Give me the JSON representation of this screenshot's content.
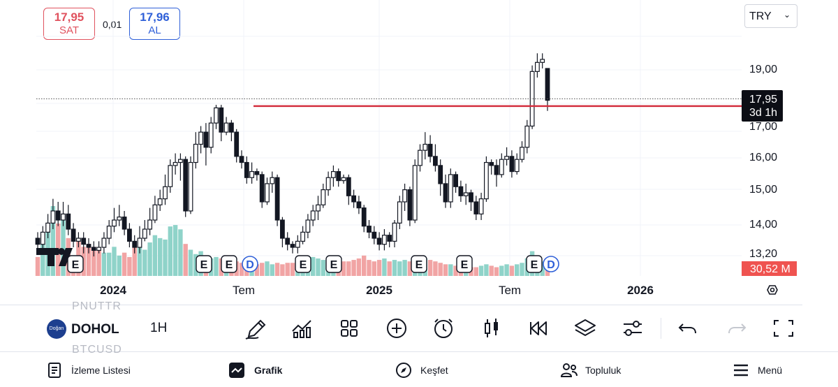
{
  "quote": {
    "sell_price": "17,95",
    "sell_label": "SAT",
    "spread": "0,01",
    "buy_price": "17,96",
    "buy_label": "AL"
  },
  "currency": "TRY",
  "price_axis": {
    "labels": [
      "19,00",
      "16,00",
      "15,00",
      "14,00",
      "13,20"
    ],
    "last_price": "17,95",
    "countdown": "3d 1h",
    "volume_label": "30,52 M",
    "partial_label": "17,00"
  },
  "time_axis": [
    "2024",
    "Tem",
    "2025",
    "Tem",
    "2026"
  ],
  "events": [
    "E",
    "E",
    "E",
    "D",
    "E",
    "E",
    "E",
    "E",
    "E",
    "D"
  ],
  "symbol": {
    "name": "DOHOL",
    "logo_text": "Doğan",
    "interval": "1H",
    "ticker_above": "PNUTTR",
    "ticker_below": "BTCUSD"
  },
  "toolbar": [
    "pencil-icon",
    "indicators-icon",
    "layout-icon",
    "add-icon",
    "alarm-icon",
    "candle-style-icon",
    "replay-icon",
    "layers-icon",
    "settings-sliders-icon",
    "undo-icon",
    "redo-icon",
    "fullscreen-icon"
  ],
  "nav": {
    "watchlist": "İzleme Listesi",
    "chart": "Grafik",
    "explore": "Keşfet",
    "community": "Topluluk",
    "menu": "Menü"
  },
  "colors": {
    "up_volume": "#8fd3c9",
    "down_volume": "#f1a4a4",
    "resistance": "#d32f3f",
    "buy": "#2e5fd8",
    "sell": "#e0525e"
  },
  "chart_data": {
    "type": "candlestick",
    "interval": "1W",
    "ylim": [
      12.8,
      19.7
    ],
    "resistance": 17.76,
    "candles": [
      [
        13.4,
        13.2,
        13.6,
        12.9
      ],
      [
        13.2,
        13.6,
        13.8,
        13.0
      ],
      [
        13.6,
        13.9,
        14.2,
        13.4
      ],
      [
        13.9,
        14.3,
        14.7,
        13.7
      ],
      [
        14.3,
        14.0,
        14.6,
        13.8
      ],
      [
        14.0,
        14.2,
        14.6,
        13.8
      ],
      [
        14.2,
        13.7,
        14.5,
        13.5
      ],
      [
        13.7,
        13.3,
        13.9,
        13.1
      ],
      [
        13.3,
        13.4,
        13.6,
        13.1
      ],
      [
        13.4,
        13.2,
        13.6,
        12.9
      ],
      [
        13.2,
        13.1,
        13.4,
        12.9
      ],
      [
        13.1,
        13.0,
        13.3,
        12.8
      ],
      [
        13.0,
        13.1,
        13.3,
        12.9
      ],
      [
        13.1,
        13.4,
        13.6,
        12.9
      ],
      [
        13.4,
        13.8,
        14.0,
        13.2
      ],
      [
        13.8,
        14.0,
        14.4,
        13.6
      ],
      [
        14.0,
        14.1,
        14.5,
        13.8
      ],
      [
        14.1,
        13.7,
        14.3,
        13.5
      ],
      [
        13.7,
        13.3,
        13.9,
        13.1
      ],
      [
        13.3,
        13.1,
        13.5,
        12.9
      ],
      [
        13.1,
        13.4,
        13.8,
        12.9
      ],
      [
        13.4,
        13.7,
        14.0,
        13.3
      ],
      [
        13.7,
        14.0,
        14.4,
        13.5
      ],
      [
        14.0,
        14.5,
        14.8,
        13.9
      ],
      [
        14.5,
        14.7,
        15.0,
        14.3
      ],
      [
        14.7,
        15.1,
        15.5,
        14.5
      ],
      [
        15.1,
        15.8,
        16.0,
        14.9
      ],
      [
        15.8,
        15.9,
        16.2,
        15.5
      ],
      [
        15.9,
        16.0,
        16.2,
        15.3
      ],
      [
        16.0,
        14.3,
        16.1,
        14.1
      ],
      [
        14.3,
        15.9,
        16.1,
        14.2
      ],
      [
        15.9,
        16.5,
        16.9,
        15.7
      ],
      [
        16.5,
        16.9,
        17.1,
        16.2
      ],
      [
        16.9,
        16.4,
        17.2,
        15.8
      ],
      [
        16.4,
        17.2,
        17.4,
        16.2
      ],
      [
        17.2,
        17.7,
        17.8,
        17.0
      ],
      [
        17.7,
        16.9,
        17.8,
        16.6
      ],
      [
        16.9,
        17.2,
        17.4,
        16.8
      ],
      [
        17.2,
        16.9,
        17.3,
        16.6
      ],
      [
        16.9,
        16.1,
        17.0,
        15.9
      ],
      [
        16.1,
        15.9,
        16.3,
        15.7
      ],
      [
        15.9,
        15.4,
        16.1,
        15.2
      ],
      [
        15.4,
        15.6,
        15.9,
        15.2
      ],
      [
        15.6,
        15.5,
        15.7,
        15.3
      ],
      [
        15.5,
        14.6,
        15.6,
        14.4
      ],
      [
        14.6,
        15.2,
        15.4,
        14.5
      ],
      [
        15.2,
        15.4,
        15.6,
        14.9
      ],
      [
        15.4,
        14.0,
        15.5,
        13.8
      ],
      [
        14.0,
        13.4,
        14.1,
        13.1
      ],
      [
        13.4,
        13.2,
        13.6,
        13.0
      ],
      [
        13.2,
        13.1,
        13.3,
        12.9
      ],
      [
        13.1,
        13.3,
        13.5,
        12.9
      ],
      [
        13.3,
        13.6,
        13.8,
        13.2
      ],
      [
        13.6,
        14.0,
        14.2,
        13.4
      ],
      [
        14.0,
        14.3,
        14.5,
        13.8
      ],
      [
        14.3,
        14.5,
        14.8,
        14.0
      ],
      [
        14.5,
        15.0,
        15.2,
        14.4
      ],
      [
        15.0,
        15.4,
        15.6,
        14.8
      ],
      [
        15.4,
        15.6,
        15.8,
        15.1
      ],
      [
        15.6,
        15.3,
        15.7,
        15.1
      ],
      [
        15.3,
        15.4,
        15.5,
        15.2
      ],
      [
        15.4,
        14.8,
        15.5,
        14.5
      ],
      [
        14.8,
        14.6,
        15.0,
        14.4
      ],
      [
        14.6,
        14.4,
        14.8,
        14.2
      ],
      [
        14.4,
        13.8,
        14.5,
        13.6
      ],
      [
        13.8,
        13.6,
        14.0,
        13.4
      ],
      [
        13.6,
        13.4,
        13.8,
        13.2
      ],
      [
        13.4,
        13.2,
        13.6,
        13.0
      ],
      [
        13.2,
        13.5,
        13.7,
        13.0
      ],
      [
        13.5,
        13.3,
        13.6,
        13.1
      ],
      [
        13.3,
        13.9,
        14.0,
        13.1
      ],
      [
        13.9,
        14.6,
        14.8,
        13.7
      ],
      [
        14.6,
        15.0,
        15.2,
        14.3
      ],
      [
        15.0,
        14.0,
        15.1,
        13.8
      ],
      [
        14.0,
        15.8,
        16.0,
        13.9
      ],
      [
        15.8,
        16.3,
        16.5,
        15.6
      ],
      [
        16.3,
        16.5,
        16.9,
        16.0
      ],
      [
        16.5,
        16.1,
        16.8,
        15.9
      ],
      [
        16.1,
        15.8,
        16.5,
        15.6
      ],
      [
        15.8,
        15.2,
        16.0,
        14.8
      ],
      [
        15.2,
        14.6,
        15.5,
        14.4
      ],
      [
        14.6,
        15.5,
        15.7,
        14.4
      ],
      [
        15.5,
        15.1,
        15.6,
        14.9
      ],
      [
        15.1,
        14.8,
        15.3,
        14.6
      ],
      [
        14.8,
        14.9,
        15.2,
        14.5
      ],
      [
        14.9,
        14.6,
        15.0,
        14.3
      ],
      [
        14.6,
        14.2,
        14.8,
        14.0
      ],
      [
        14.2,
        14.7,
        14.9,
        14.0
      ],
      [
        14.7,
        15.9,
        16.1,
        14.6
      ],
      [
        15.9,
        15.8,
        16.0,
        15.5
      ],
      [
        15.8,
        15.5,
        16.0,
        15.1
      ],
      [
        15.5,
        16.0,
        16.2,
        15.4
      ],
      [
        16.0,
        16.1,
        16.4,
        15.8
      ],
      [
        16.1,
        15.6,
        16.3,
        15.4
      ],
      [
        15.6,
        16.0,
        16.2,
        15.5
      ],
      [
        16.0,
        16.4,
        16.6,
        15.9
      ],
      [
        16.4,
        17.1,
        17.3,
        16.2
      ],
      [
        17.1,
        18.9,
        19.1,
        17.0
      ],
      [
        18.9,
        19.2,
        19.5,
        18.7
      ],
      [
        19.2,
        19.3,
        19.5,
        19.0
      ],
      [
        19.0,
        17.95,
        19.0,
        17.6
      ]
    ],
    "volume": [
      [
        1.3,
        "d"
      ],
      [
        2.5,
        "u"
      ],
      [
        3.2,
        "u"
      ],
      [
        4.8,
        "u"
      ],
      [
        3.6,
        "d"
      ],
      [
        4.2,
        "u"
      ],
      [
        2.6,
        "d"
      ],
      [
        1.2,
        "d"
      ],
      [
        2.4,
        "d"
      ],
      [
        2.0,
        "d"
      ],
      [
        2.2,
        "d"
      ],
      [
        2.0,
        "d"
      ],
      [
        1.8,
        "d"
      ],
      [
        1.6,
        "u"
      ],
      [
        1.6,
        "u"
      ],
      [
        2.0,
        "u"
      ],
      [
        1.4,
        "u"
      ],
      [
        1.6,
        "d"
      ],
      [
        1.3,
        "d"
      ],
      [
        2.3,
        "d"
      ],
      [
        2.0,
        "u"
      ],
      [
        1.8,
        "u"
      ],
      [
        2.3,
        "u"
      ],
      [
        2.8,
        "u"
      ],
      [
        2.6,
        "u"
      ],
      [
        2.5,
        "u"
      ],
      [
        3.4,
        "u"
      ],
      [
        3.5,
        "u"
      ],
      [
        3.2,
        "u"
      ],
      [
        2.2,
        "d"
      ],
      [
        1.8,
        "u"
      ],
      [
        1.5,
        "u"
      ],
      [
        1.7,
        "u"
      ],
      [
        1.4,
        "d"
      ],
      [
        1.2,
        "u"
      ],
      [
        1.3,
        "u"
      ],
      [
        1.2,
        "d"
      ],
      [
        1.4,
        "u"
      ],
      [
        1.3,
        "d"
      ],
      [
        1.0,
        "d"
      ],
      [
        0.9,
        "d"
      ],
      [
        0.8,
        "d"
      ],
      [
        1.0,
        "u"
      ],
      [
        0.8,
        "d"
      ],
      [
        0.9,
        "d"
      ],
      [
        1.0,
        "u"
      ],
      [
        0.8,
        "u"
      ],
      [
        0.9,
        "d"
      ],
      [
        0.8,
        "d"
      ],
      [
        0.9,
        "d"
      ],
      [
        0.9,
        "d"
      ],
      [
        1.0,
        "u"
      ],
      [
        1.0,
        "u"
      ],
      [
        1.1,
        "u"
      ],
      [
        1.3,
        "u"
      ],
      [
        1.2,
        "u"
      ],
      [
        1.1,
        "u"
      ],
      [
        1.2,
        "u"
      ],
      [
        1.3,
        "u"
      ],
      [
        1.1,
        "d"
      ],
      [
        1.0,
        "d"
      ],
      [
        1.0,
        "d"
      ],
      [
        1.1,
        "d"
      ],
      [
        1.2,
        "d"
      ],
      [
        1.4,
        "d"
      ],
      [
        1.1,
        "d"
      ],
      [
        1.0,
        "d"
      ],
      [
        1.1,
        "d"
      ],
      [
        1.2,
        "u"
      ],
      [
        1.0,
        "d"
      ],
      [
        1.1,
        "u"
      ],
      [
        1.0,
        "u"
      ],
      [
        1.1,
        "u"
      ],
      [
        1.0,
        "d"
      ],
      [
        1.2,
        "u"
      ],
      [
        1.3,
        "u"
      ],
      [
        1.2,
        "u"
      ],
      [
        1.1,
        "d"
      ],
      [
        1.0,
        "d"
      ],
      [
        0.9,
        "d"
      ],
      [
        0.8,
        "d"
      ],
      [
        0.8,
        "u"
      ],
      [
        0.7,
        "d"
      ],
      [
        0.7,
        "d"
      ],
      [
        0.6,
        "u"
      ],
      [
        0.6,
        "d"
      ],
      [
        0.6,
        "d"
      ],
      [
        0.7,
        "u"
      ],
      [
        0.8,
        "u"
      ],
      [
        0.7,
        "d"
      ],
      [
        0.6,
        "d"
      ],
      [
        0.7,
        "u"
      ],
      [
        0.8,
        "u"
      ],
      [
        0.7,
        "d"
      ],
      [
        0.8,
        "u"
      ],
      [
        0.9,
        "u"
      ],
      [
        1.2,
        "u"
      ],
      [
        1.7,
        "u"
      ],
      [
        1.3,
        "u"
      ],
      [
        1.0,
        "u"
      ],
      [
        1.2,
        "d"
      ]
    ]
  }
}
